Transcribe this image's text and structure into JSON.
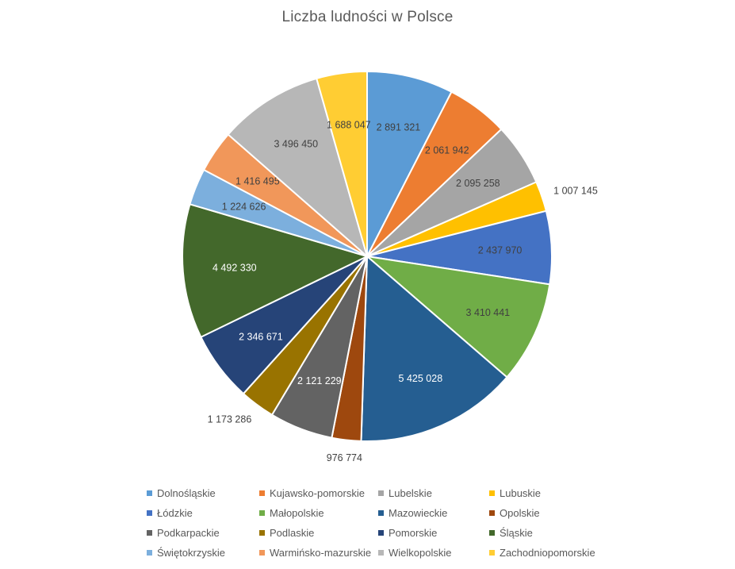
{
  "chart_data": {
    "type": "pie",
    "title": "Liczba ludności w Polsce",
    "categories": [
      "Dolnośląskie",
      "Kujawsko-pomorskie",
      "Lubelskie",
      "Lubuskie",
      "Łódzkie",
      "Małopolskie",
      "Mazowieckie",
      "Opolskie",
      "Podkarpackie",
      "Podlaskie",
      "Pomorskie",
      "Śląskie",
      "Świętokrzyskie",
      "Warmińsko-mazurskie",
      "Wielkopolskie",
      "Zachodniopomorskie"
    ],
    "values": [
      2891321,
      2061942,
      2095258,
      1007145,
      2437970,
      3410441,
      5425028,
      976774,
      2121229,
      1173286,
      2346671,
      4492330,
      1224626,
      1416495,
      3496450,
      1688047
    ],
    "labels": [
      "2 891 321",
      "2 061 942",
      "2 095 258",
      "1 007 145",
      "2 437 970",
      "3 410 441",
      "5 425 028",
      "976 774",
      "2 121 229",
      "1 173 286",
      "2 346 671",
      "4 492 330",
      "1 224 626",
      "1 416 495",
      "3 496 450",
      "1 688 047"
    ],
    "colors": [
      "#5B9BD5",
      "#ED7D31",
      "#A5A5A5",
      "#FFC000",
      "#4472C4",
      "#70AD47",
      "#255E91",
      "#9E480E",
      "#636363",
      "#997300",
      "#264478",
      "#43682B",
      "#7CAFDD",
      "#F1975A",
      "#B7B7B7",
      "#FFCD33"
    ],
    "label_text_colors": [
      "#404040",
      "#404040",
      "#404040",
      "#404040",
      "#404040",
      "#404040",
      "#ffffff",
      "#404040",
      "#ffffff",
      "#404040",
      "#ffffff",
      "#ffffff",
      "#404040",
      "#404040",
      "#404040",
      "#404040"
    ],
    "legend_position": "bottom"
  }
}
